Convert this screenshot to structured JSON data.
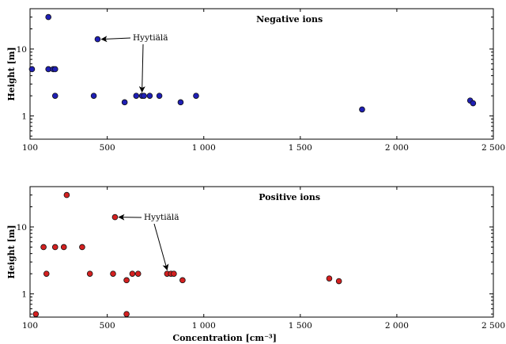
{
  "chart_data": [
    {
      "type": "scatter",
      "title": "Negative ions",
      "ylabel": "Height [m]",
      "xlabel": "",
      "x_scale": "linear",
      "y_scale": "log",
      "xlim": [
        100,
        2500
      ],
      "ylim": [
        0.45,
        40
      ],
      "x_ticks": [
        100,
        500,
        1000,
        1500,
        2000,
        2500
      ],
      "x_tick_labels": [
        "100",
        "500",
        "1 000",
        "1 500",
        "2 000",
        "2 500"
      ],
      "y_ticks": [
        1,
        10
      ],
      "y_tick_labels": [
        "1",
        "10"
      ],
      "marker_color": "#1f1fb5",
      "points": [
        {
          "x": 195,
          "y": 30
        },
        {
          "x": 110,
          "y": 5
        },
        {
          "x": 195,
          "y": 5
        },
        {
          "x": 220,
          "y": 5
        },
        {
          "x": 230,
          "y": 5
        },
        {
          "x": 450,
          "y": 14
        },
        {
          "x": 230,
          "y": 2
        },
        {
          "x": 430,
          "y": 2
        },
        {
          "x": 590,
          "y": 1.6
        },
        {
          "x": 650,
          "y": 2
        },
        {
          "x": 680,
          "y": 2
        },
        {
          "x": 690,
          "y": 2
        },
        {
          "x": 720,
          "y": 2
        },
        {
          "x": 770,
          "y": 2
        },
        {
          "x": 880,
          "y": 1.6
        },
        {
          "x": 960,
          "y": 2
        },
        {
          "x": 1820,
          "y": 1.25
        },
        {
          "x": 2380,
          "y": 1.7
        },
        {
          "x": 2395,
          "y": 1.55
        }
      ],
      "annotation": {
        "text": "Hyytiälä"
      }
    },
    {
      "type": "scatter",
      "title": "Positive ions",
      "ylabel": "Height [m]",
      "xlabel": "Concentration [cm⁻³]",
      "x_scale": "linear",
      "y_scale": "log",
      "xlim": [
        100,
        2500
      ],
      "ylim": [
        0.45,
        40
      ],
      "x_ticks": [
        100,
        500,
        1000,
        1500,
        2000,
        2500
      ],
      "x_tick_labels": [
        "100",
        "500",
        "1 000",
        "1 500",
        "2 000",
        "2 500"
      ],
      "y_ticks": [
        1,
        10
      ],
      "y_tick_labels": [
        "1",
        "10"
      ],
      "marker_color": "#d42020",
      "points": [
        {
          "x": 290,
          "y": 30
        },
        {
          "x": 170,
          "y": 5
        },
        {
          "x": 230,
          "y": 5
        },
        {
          "x": 275,
          "y": 5
        },
        {
          "x": 370,
          "y": 5
        },
        {
          "x": 540,
          "y": 14
        },
        {
          "x": 185,
          "y": 2
        },
        {
          "x": 410,
          "y": 2
        },
        {
          "x": 530,
          "y": 2
        },
        {
          "x": 630,
          "y": 2
        },
        {
          "x": 660,
          "y": 2
        },
        {
          "x": 810,
          "y": 2
        },
        {
          "x": 830,
          "y": 2
        },
        {
          "x": 845,
          "y": 2
        },
        {
          "x": 600,
          "y": 1.6
        },
        {
          "x": 890,
          "y": 1.6
        },
        {
          "x": 130,
          "y": 0.5
        },
        {
          "x": 600,
          "y": 0.5
        },
        {
          "x": 1650,
          "y": 1.7
        },
        {
          "x": 1700,
          "y": 1.55
        }
      ],
      "annotation": {
        "text": "Hyytiälä"
      }
    }
  ]
}
